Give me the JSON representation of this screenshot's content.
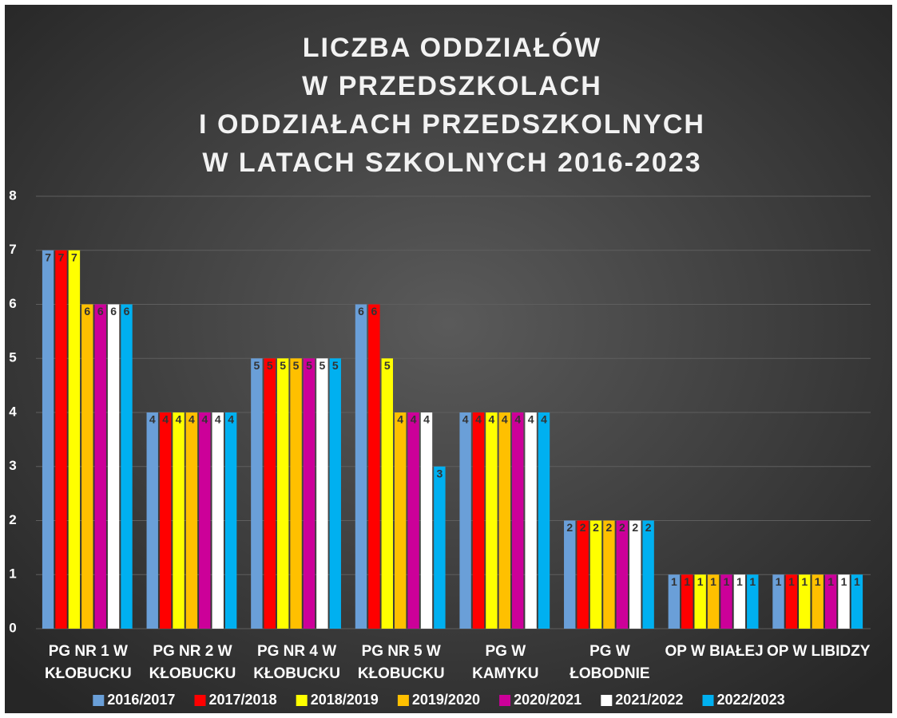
{
  "chart_data": {
    "type": "bar",
    "title": [
      "LICZBA ODDZIAŁÓW",
      "W PRZEDSZKOLACH",
      "I ODDZIAŁACH PRZEDSZKOLNYCH",
      "W LATACH SZKOLNYCH 2016-2023"
    ],
    "categories": [
      "PG NR 1 W KŁOBUCKU",
      "PG NR 2 W KŁOBUCKU",
      "PG NR 4 W KŁOBUCKU",
      "PG NR 5 W KŁOBUCKU",
      "PG W KAMYKU",
      "PG W ŁOBODNIE",
      "OP W BIAŁEJ",
      "OP W LIBIDZY"
    ],
    "series": [
      {
        "name": "2016/2017",
        "color": "#6a9fd8",
        "values": [
          7,
          4,
          5,
          6,
          4,
          2,
          1,
          1
        ]
      },
      {
        "name": "2017/2018",
        "color": "#ff0000",
        "values": [
          7,
          4,
          5,
          6,
          4,
          2,
          1,
          1
        ]
      },
      {
        "name": "2018/2019",
        "color": "#ffff00",
        "values": [
          7,
          4,
          5,
          5,
          4,
          2,
          1,
          1
        ]
      },
      {
        "name": "2019/2020",
        "color": "#ffc000",
        "values": [
          6,
          4,
          5,
          4,
          4,
          2,
          1,
          1
        ]
      },
      {
        "name": "2020/2021",
        "color": "#cc0099",
        "values": [
          6,
          4,
          5,
          4,
          4,
          2,
          1,
          1
        ]
      },
      {
        "name": "2021/2022",
        "color": "#ffffff",
        "values": [
          6,
          4,
          5,
          4,
          4,
          2,
          1,
          1
        ]
      },
      {
        "name": "2022/2023",
        "color": "#00b0f0",
        "values": [
          6,
          4,
          5,
          3,
          4,
          2,
          1,
          1
        ]
      }
    ],
    "ylim": [
      0,
      8
    ],
    "yticks": [
      0,
      1,
      2,
      3,
      4,
      5,
      6,
      7,
      8
    ],
    "grid": true,
    "legend": "bottom"
  }
}
